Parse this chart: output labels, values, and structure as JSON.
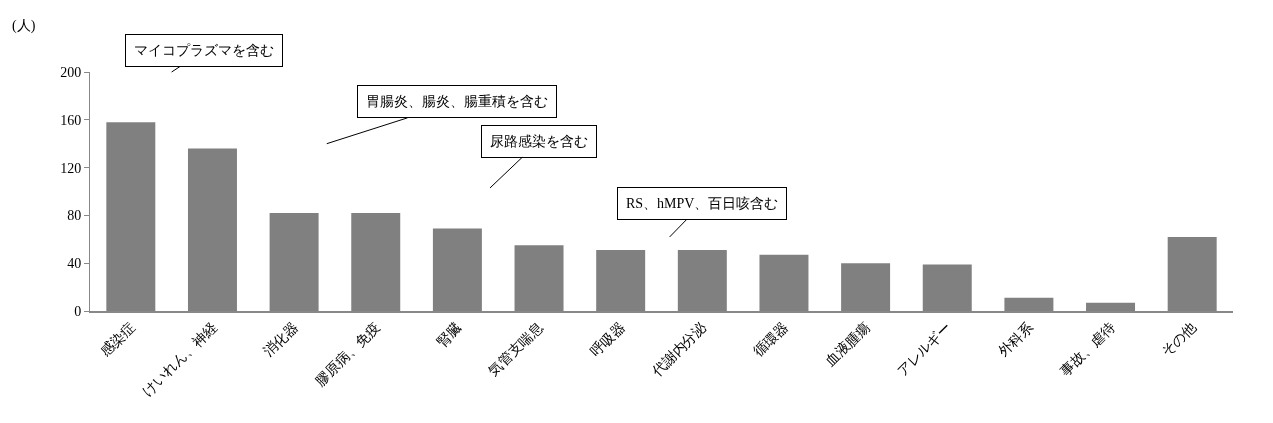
{
  "chart_data": {
    "type": "bar",
    "ylabel": "(人)",
    "categories": [
      "感染症",
      "けいれん、神経",
      "消化器",
      "膠原病、免疫",
      "腎臓",
      "気管支喘息",
      "呼吸器",
      "代謝内分泌",
      "循環器",
      "血液腫瘍",
      "アレルギー",
      "外科系",
      "事故、虐待",
      "その他"
    ],
    "values": [
      158,
      136,
      82,
      82,
      69,
      55,
      51,
      51,
      47,
      40,
      39,
      11,
      7,
      62
    ],
    "color": "#808080",
    "ylim": [
      0,
      200
    ],
    "yticks": [
      0,
      40,
      80,
      120,
      160,
      200
    ],
    "annotations": [
      "マイコプラズマを含む",
      "胃腸炎、腸炎、腸重積を含む",
      "尿路感染を含む",
      "RS、hMPV、百日咳含む"
    ]
  }
}
